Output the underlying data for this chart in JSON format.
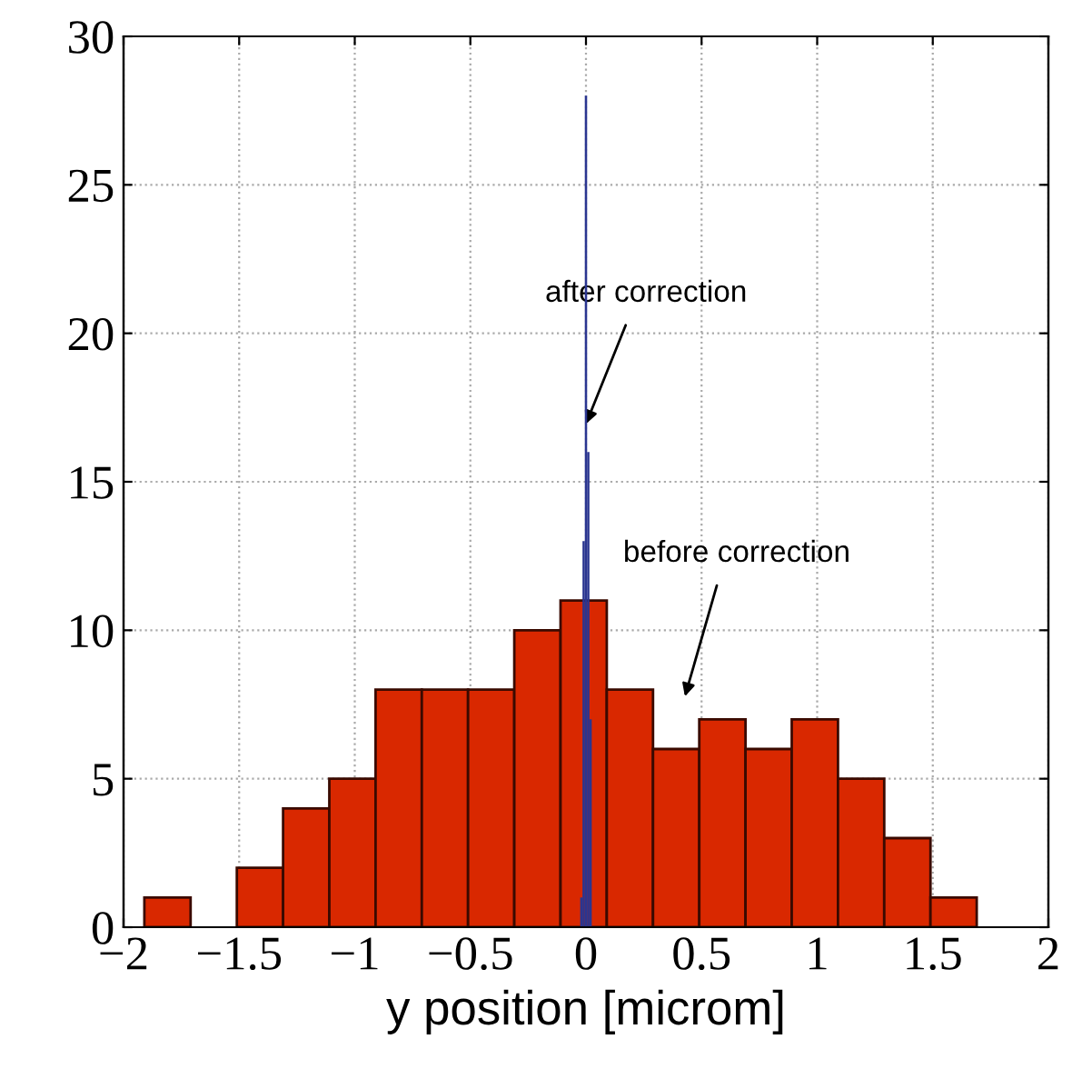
{
  "chart_data": [
    {
      "type": "histogram",
      "xlabel": "y position [microm]",
      "color": "#d92800",
      "bins": [
        -1.91,
        -1.71,
        -1.51,
        -1.31,
        -1.11,
        -0.91,
        -0.71,
        -0.51,
        -0.31,
        -0.11,
        0.09,
        0.29,
        0.49,
        0.69,
        0.89,
        1.09,
        1.29,
        1.49,
        1.69
      ],
      "values": [
        1,
        0,
        2,
        4,
        5,
        8,
        8,
        8,
        10,
        11,
        8,
        6,
        7,
        6,
        7,
        5,
        3,
        1
      ],
      "xlim": [
        -2,
        2
      ],
      "xticks": [
        {
          "value": -2,
          "label": "−2"
        },
        {
          "value": -1.5,
          "label": "−1.5"
        },
        {
          "value": -1,
          "label": "−1"
        },
        {
          "value": -0.5,
          "label": "−0.5"
        },
        0,
        0.5,
        1,
        1.5,
        2
      ],
      "ylim": [
        0,
        30
      ],
      "yticks": [
        0,
        5,
        10,
        15,
        20,
        25,
        30
      ],
      "grid": true,
      "annotations": [
        "after correction",
        "before correction"
      ]
    },
    {
      "type": "histogram",
      "color": "#2a3590",
      "bins": [
        -0.025,
        -0.015,
        -0.005,
        0.005,
        0.015,
        0.025
      ],
      "values": [
        1,
        13,
        28,
        16,
        7
      ],
      "xlim": [
        -2,
        2
      ],
      "ylim": [
        0,
        30
      ]
    }
  ]
}
